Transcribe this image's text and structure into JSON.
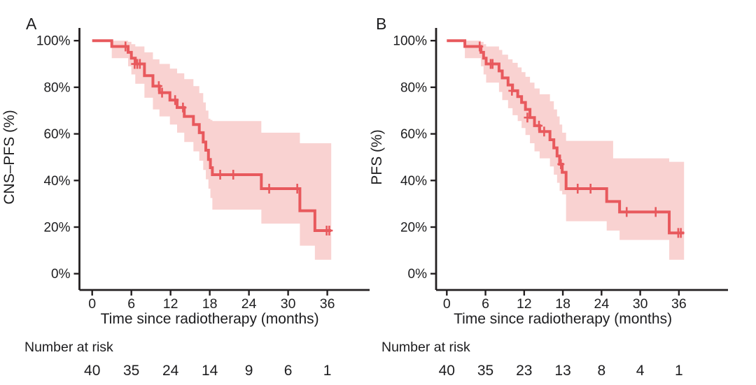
{
  "figure": {
    "background": "#ffffff",
    "text_color": "#1d1d1f",
    "axis_color": "#231f20"
  },
  "chart_data": [
    {
      "type": "line",
      "subtype": "kaplan-meier-step",
      "panel_label": "A",
      "ylabel": "CNS–PFS (%)",
      "xlabel": "Time since radiotherapy (months)",
      "x_ticks": [
        0,
        6,
        12,
        18,
        24,
        30,
        36
      ],
      "y_tick_pcts": [
        0,
        20,
        40,
        60,
        80,
        100
      ],
      "y_tick_labels": [
        "0%",
        "20%",
        "40%",
        "60%",
        "80%",
        "100%"
      ],
      "xlim": [
        0,
        42
      ],
      "ylim": [
        0,
        100
      ],
      "grid": false,
      "line_color": "#e8595d",
      "band_color": "#f9d2d1",
      "km_steps": [
        [
          0,
          100
        ],
        [
          3,
          97.5
        ],
        [
          5.5,
          95
        ],
        [
          6,
          92.5
        ],
        [
          6.6,
          90
        ],
        [
          8,
          85
        ],
        [
          9.3,
          80.5
        ],
        [
          10.3,
          77.7
        ],
        [
          11.9,
          74.5
        ],
        [
          13,
          71.3
        ],
        [
          14.1,
          67.5
        ],
        [
          15.5,
          64
        ],
        [
          16.4,
          60.5
        ],
        [
          17,
          56.5
        ],
        [
          17.4,
          53
        ],
        [
          17.8,
          49
        ],
        [
          18.1,
          45.5
        ],
        [
          18.4,
          42.5
        ],
        [
          25.9,
          36.5
        ],
        [
          31.8,
          27
        ],
        [
          34.1,
          18.5
        ]
      ],
      "end_time": 36.6,
      "censor_marks": [
        [
          5.1,
          97.5
        ],
        [
          6.5,
          90
        ],
        [
          6.9,
          90
        ],
        [
          7.3,
          90
        ],
        [
          10.2,
          80.5
        ],
        [
          10.7,
          77.7
        ],
        [
          12.7,
          74.5
        ],
        [
          13.9,
          71.3
        ],
        [
          19.6,
          42.5
        ],
        [
          21.6,
          42.5
        ],
        [
          27.1,
          36.5
        ],
        [
          31.4,
          36.5
        ],
        [
          35.9,
          18.5
        ],
        [
          36.3,
          18.5
        ]
      ],
      "ci_steps": [
        [
          3,
          92.5,
          100
        ],
        [
          5.5,
          89,
          99.5
        ],
        [
          6,
          85.5,
          98.5
        ],
        [
          6.6,
          81.5,
          97.5
        ],
        [
          8,
          75.5,
          95
        ],
        [
          9.3,
          70.5,
          92
        ],
        [
          10.3,
          67.5,
          90
        ],
        [
          11.9,
          64,
          88
        ],
        [
          13,
          60.5,
          86
        ],
        [
          14.1,
          56.5,
          83.5
        ],
        [
          15.5,
          52.5,
          80.5
        ],
        [
          16.4,
          48.5,
          77.5
        ],
        [
          17,
          44.5,
          73.5
        ],
        [
          17.4,
          40.5,
          70
        ],
        [
          17.8,
          36.5,
          66.5
        ],
        [
          18.1,
          32.5,
          66
        ],
        [
          18.4,
          27.5,
          65.5
        ],
        [
          25.9,
          21.5,
          60.5
        ],
        [
          31.8,
          12,
          56
        ],
        [
          34.1,
          6,
          56
        ]
      ],
      "band_end": 36.6,
      "risk_label": "Number at risk",
      "risk_times": [
        0,
        6,
        12,
        18,
        24,
        30,
        36
      ],
      "number_at_risk": [
        40,
        35,
        24,
        14,
        9,
        6,
        1
      ]
    },
    {
      "type": "line",
      "subtype": "kaplan-meier-step",
      "panel_label": "B",
      "ylabel": "PFS (%)",
      "xlabel": "Time since radiotherapy (months)",
      "x_ticks": [
        0,
        6,
        12,
        18,
        24,
        30,
        36
      ],
      "y_tick_pcts": [
        0,
        20,
        40,
        60,
        80,
        100
      ],
      "y_tick_labels": [
        "0%",
        "20%",
        "40%",
        "60%",
        "80%",
        "100%"
      ],
      "xlim": [
        0,
        42
      ],
      "ylim": [
        0,
        100
      ],
      "grid": false,
      "line_color": "#e8595d",
      "band_color": "#f9d2d1",
      "km_steps": [
        [
          0,
          100
        ],
        [
          2.8,
          97.5
        ],
        [
          5.3,
          95
        ],
        [
          5.7,
          92.5
        ],
        [
          6.1,
          90
        ],
        [
          8.1,
          87
        ],
        [
          8.6,
          84
        ],
        [
          9.5,
          81
        ],
        [
          10.2,
          78.5
        ],
        [
          11,
          76
        ],
        [
          11.6,
          73.5
        ],
        [
          12.2,
          70.5
        ],
        [
          12.9,
          67
        ],
        [
          13.6,
          63.5
        ],
        [
          14.4,
          61
        ],
        [
          16,
          57.5
        ],
        [
          16.6,
          54
        ],
        [
          17.1,
          50.5
        ],
        [
          17.5,
          47
        ],
        [
          17.9,
          43.5
        ],
        [
          18.5,
          36.5
        ],
        [
          24.8,
          31
        ],
        [
          26.8,
          26.5
        ],
        [
          34.5,
          17.5
        ]
      ],
      "end_time": 36.8,
      "censor_marks": [
        [
          5.1,
          97.5
        ],
        [
          6.8,
          90
        ],
        [
          7.1,
          90
        ],
        [
          10.1,
          78.5
        ],
        [
          12.5,
          67
        ],
        [
          14.3,
          63.5
        ],
        [
          15.1,
          61
        ],
        [
          17.7,
          47
        ],
        [
          20.3,
          36.5
        ],
        [
          22.3,
          36.5
        ],
        [
          27.9,
          26.5
        ],
        [
          32.4,
          26.5
        ],
        [
          35.9,
          17.5
        ],
        [
          36.3,
          17.5
        ]
      ],
      "ci_steps": [
        [
          2.8,
          92.5,
          100
        ],
        [
          5.3,
          89,
          99.5
        ],
        [
          5.7,
          85.5,
          98.5
        ],
        [
          6.1,
          82,
          97.5
        ],
        [
          8.1,
          78,
          96
        ],
        [
          8.6,
          74.5,
          94
        ],
        [
          9.5,
          71,
          92
        ],
        [
          10.2,
          68,
          90.5
        ],
        [
          11,
          65.5,
          88.5
        ],
        [
          11.6,
          62.5,
          86.5
        ],
        [
          12.2,
          59.5,
          84.5
        ],
        [
          12.9,
          56,
          82
        ],
        [
          13.6,
          52.5,
          79.5
        ],
        [
          14.4,
          49.5,
          77
        ],
        [
          16,
          46,
          74
        ],
        [
          16.6,
          42.5,
          70.5
        ],
        [
          17.1,
          39,
          67.5
        ],
        [
          17.5,
          35.5,
          64
        ],
        [
          17.9,
          34,
          60.5
        ],
        [
          18.5,
          22.5,
          57
        ],
        [
          24.8,
          18.5,
          57
        ],
        [
          25.8,
          18.5,
          49.5
        ],
        [
          26.8,
          14.5,
          49.5
        ],
        [
          34.5,
          6,
          48
        ]
      ],
      "band_end": 36.8,
      "risk_label": "Number at risk",
      "risk_times": [
        0,
        6,
        12,
        18,
        24,
        30,
        36
      ],
      "number_at_risk": [
        40,
        35,
        23,
        13,
        8,
        4,
        1
      ]
    }
  ]
}
